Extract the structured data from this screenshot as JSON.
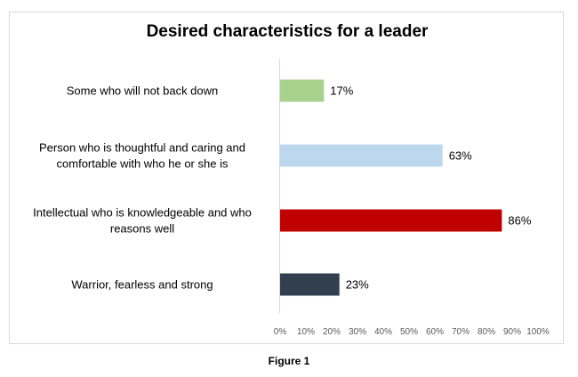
{
  "chart_data": {
    "type": "bar",
    "orientation": "horizontal",
    "title": "Desired characteristics for a leader",
    "categories": [
      [
        "Some who will not back down"
      ],
      [
        "Person who is thoughtful and caring and",
        "comfortable with who he or she is"
      ],
      [
        "Intellectual who is knowledgeable and who",
        "reasons well"
      ],
      [
        "Warrior, fearless and strong"
      ]
    ],
    "values": [
      17,
      63,
      86,
      23
    ],
    "value_labels": [
      "17%",
      "63%",
      "86%",
      "23%"
    ],
    "bar_colors": [
      "#a9d18e",
      "#bdd7ee",
      "#c00000",
      "#323f4f"
    ],
    "xlim": [
      0,
      100
    ],
    "x_ticks": [
      "0%",
      "10%",
      "20%",
      "30%",
      "40%",
      "50%",
      "60%",
      "70%",
      "80%",
      "90%",
      "100%"
    ],
    "grid": false,
    "legend": "none"
  },
  "caption": "Figure 1"
}
